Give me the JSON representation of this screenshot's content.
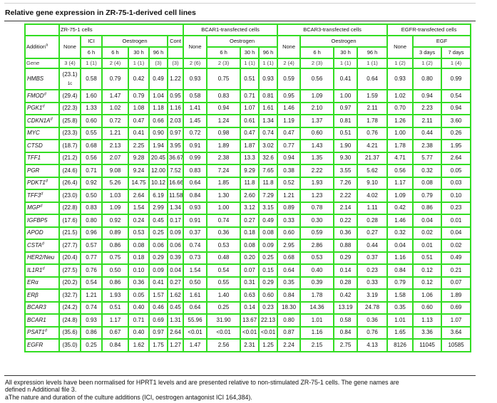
{
  "title": "Relative gene expression in ZR-75-1-derived cell lines",
  "groups": {
    "zr": "ZR-75-1 cells",
    "bcar1": "BCAR1-transfected cells",
    "bcar3": "BCAR3-transfected cells",
    "egfr": "EGFR-transfected cells"
  },
  "header": {
    "addition": "Addition",
    "addition_sup": "a",
    "none": "None",
    "ici": "ICI",
    "oestrogen": "Oestrogen",
    "egf": "EGF",
    "cont": "Cont",
    "t6h": "6 h",
    "t30h": "30 h",
    "t96h": "96 h",
    "t3d": "3 days",
    "t7d": "7 days",
    "gene": "Gene",
    "n": [
      "3 (4)",
      "1 (1)",
      "2 (4)",
      "1 (1)",
      "(3)",
      "(3)",
      "2 (6)",
      "2 (3)",
      "1 (1)",
      "1 (1)",
      "2 (4)",
      "2 (3)",
      "1 (1)",
      "1 (1)",
      "1 (2)",
      "1 (2)",
      "1 (4)"
    ]
  },
  "rows": [
    {
      "gene": "HMBS",
      "sup": "",
      "base": "(23.1)",
      "base_extra": "1c",
      "v": [
        "0.58",
        "0.79",
        "0.42",
        "0.49",
        "1.22",
        "0.93",
        "0.75",
        "0.51",
        "0.93",
        "0.59",
        "0.56",
        "0.41",
        "0.64",
        "0.93",
        "0.80",
        "0.99"
      ]
    },
    {
      "gene": "FMOD",
      "sup": "d",
      "base": "(29.4)",
      "base_extra": "",
      "v": [
        "1.60",
        "1.47",
        "0.79",
        "1.04",
        "0.95",
        "0.58",
        "0.83",
        "0.71",
        "0.81",
        "0.95",
        "1.09",
        "1.00",
        "1.59",
        "1.02",
        "0.94",
        "0.54"
      ]
    },
    {
      "gene": "PGK1",
      "sup": "d",
      "base": "(22.3)",
      "base_extra": "",
      "v": [
        "1.33",
        "1.02",
        "1.08",
        "1.18",
        "1.16",
        "1.41",
        "0.94",
        "1.07",
        "1.61",
        "1.46",
        "2.10",
        "0.97",
        "2.11",
        "0.70",
        "2.23",
        "0.94"
      ]
    },
    {
      "gene": "CDKN1A",
      "sup": "d",
      "base": "(25.8)",
      "base_extra": "",
      "v": [
        "0.60",
        "0.72",
        "0.47",
        "0.66",
        "2.03",
        "1.45",
        "1.24",
        "0.61",
        "1.34",
        "1.19",
        "1.37",
        "0.81",
        "1.78",
        "1.26",
        "2.11",
        "3.60"
      ]
    },
    {
      "gene": "MYC",
      "sup": "",
      "base": "(23.3)",
      "base_extra": "",
      "v": [
        "0.55",
        "1.21",
        "0.41",
        "0.90",
        "0.97",
        "0.72",
        "0.98",
        "0.47",
        "0.74",
        "0.47",
        "0.60",
        "0.51",
        "0.76",
        "1.00",
        "0.44",
        "0.26"
      ]
    },
    {
      "gene": "CTSD",
      "sup": "",
      "base": "(18.7)",
      "base_extra": "",
      "v": [
        "0.68",
        "2.13",
        "2.25",
        "1.94",
        "3.95",
        "0.91",
        "1.89",
        "1.87",
        "3.02",
        "0.77",
        "1.43",
        "1.90",
        "4.21",
        "1.78",
        "2.38",
        "1.95"
      ]
    },
    {
      "gene": "TFF1",
      "sup": "",
      "base": "(21.2)",
      "base_extra": "",
      "v": [
        "0.56",
        "2.07",
        "9.28",
        "20.45",
        "36.67",
        "0.99",
        "2.38",
        "13.3",
        "32.6",
        "0.94",
        "1.35",
        "9.30",
        "21.37",
        "4.71",
        "5.77",
        "2.64"
      ]
    },
    {
      "gene": "PGR",
      "sup": "",
      "base": "(24.6)",
      "base_extra": "",
      "v": [
        "0.71",
        "9.08",
        "9.24",
        "12.00",
        "7.52",
        "0.83",
        "7.24",
        "9.29",
        "7.65",
        "0.38",
        "2.22",
        "3.55",
        "5.62",
        "0.56",
        "0.32",
        "0.05"
      ]
    },
    {
      "gene": "PDKT1",
      "sup": "d",
      "base": "(26.4)",
      "base_extra": "",
      "v": [
        "0.92",
        "5.26",
        "14.75",
        "10.12",
        "16.66",
        "0.64",
        "1.85",
        "11.8",
        "11.8",
        "0.52",
        "1.93",
        "7.26",
        "9.10",
        "1.17",
        "0.08",
        "0.03"
      ]
    },
    {
      "gene": "TFF3",
      "sup": "d",
      "base": "(23.0)",
      "base_extra": "",
      "v": [
        "0.50",
        "1.03",
        "2.64",
        "6.19",
        "11.58",
        "0.84",
        "1.30",
        "2.60",
        "7.29",
        "1.21",
        "1.23",
        "2.22",
        "4.02",
        "1.09",
        "0.79",
        "0.10"
      ]
    },
    {
      "gene": "MGP",
      "sup": "d",
      "base": "(22.8)",
      "base_extra": "",
      "v": [
        "0.83",
        "1.09",
        "1.54",
        "2.99",
        "1.34",
        "0.93",
        "1.00",
        "3.12",
        "3.15",
        "0.89",
        "0.78",
        "2.14",
        "1.11",
        "0.42",
        "0.86",
        "0.23"
      ]
    },
    {
      "gene": "IGFBP5",
      "sup": "",
      "base": "(17.6)",
      "base_extra": "",
      "v": [
        "0.80",
        "0.92",
        "0.24",
        "0.45",
        "0.17",
        "0.91",
        "0.74",
        "0.27",
        "0.49",
        "0.33",
        "0.30",
        "0.22",
        "0.28",
        "1.46",
        "0.04",
        "0.01"
      ]
    },
    {
      "gene": "APOD",
      "sup": "",
      "base": "(21.5)",
      "base_extra": "",
      "v": [
        "0.96",
        "0.89",
        "0.53",
        "0.25",
        "0.09",
        "0.37",
        "0.36",
        "0.18",
        "0.08",
        "0.60",
        "0.59",
        "0.36",
        "0.27",
        "0.32",
        "0.02",
        "0.04"
      ]
    },
    {
      "gene": "CSTA",
      "sup": "d",
      "base": "(27.7)",
      "base_extra": "",
      "v": [
        "0.57",
        "0.86",
        "0.08",
        "0.06",
        "0.06",
        "0.74",
        "0.53",
        "0.08",
        "0.09",
        "2.95",
        "2.86",
        "0.88",
        "0.44",
        "0.04",
        "0.01",
        "0.02"
      ]
    },
    {
      "gene": "HER2/Neu",
      "sup": "",
      "base": "(20.4)",
      "base_extra": "",
      "v": [
        "0.77",
        "0.75",
        "0.18",
        "0.29",
        "0.39",
        "0.73",
        "0.48",
        "0.20",
        "0.25",
        "0.68",
        "0.53",
        "0.29",
        "0.37",
        "1.16",
        "0.51",
        "0.49"
      ]
    },
    {
      "gene": "IL1R1",
      "sup": "d",
      "base": "(27.5)",
      "base_extra": "",
      "v": [
        "0.76",
        "0.50",
        "0.10",
        "0.09",
        "0.04",
        "1.54",
        "0.54",
        "0.07",
        "0.15",
        "0.64",
        "0.40",
        "0.14",
        "0.23",
        "0.84",
        "0.12",
        "0.21"
      ]
    },
    {
      "gene": "ERα",
      "sup": "",
      "base": "(20.2)",
      "base_extra": "",
      "v": [
        "0.54",
        "0.86",
        "0.36",
        "0.41",
        "0.27",
        "0.50",
        "0.55",
        "0.31",
        "0.29",
        "0.35",
        "0.39",
        "0.28",
        "0.33",
        "0.79",
        "0.12",
        "0.07"
      ]
    },
    {
      "gene": "ERβ",
      "sup": "",
      "base": "(32.7)",
      "base_extra": "",
      "v": [
        "1.21",
        "1.93",
        "0.05",
        "1.57",
        "1.62",
        "1.61",
        "1.40",
        "0.63",
        "0.60",
        "0.84",
        "1.78",
        "0.42",
        "3.19",
        "1.58",
        "1.06",
        "1.89"
      ]
    },
    {
      "gene": "BCAR3",
      "sup": "",
      "base": "(24.2)",
      "base_extra": "",
      "v": [
        "0.74",
        "0.51",
        "0.40",
        "0.46",
        "0.45",
        "0.64",
        "0.25",
        "0.14",
        "0.23",
        "18.30",
        "14.36",
        "13.19",
        "24.78",
        "0.35",
        "0.60",
        "0.69"
      ]
    },
    {
      "gene": "BCAR1",
      "sup": "",
      "base": "(24.8)",
      "base_extra": "",
      "v": [
        "0.93",
        "1.17",
        "0.71",
        "0.69",
        "1.31",
        "55.96",
        "31.90",
        "13.67",
        "22.13",
        "0.80",
        "1.01",
        "0.58",
        "0.36",
        "1.01",
        "1.13",
        "1.07"
      ]
    },
    {
      "gene": "PSAT1",
      "sup": "d",
      "base": "(35.6)",
      "base_extra": "",
      "v": [
        "0.86",
        "0.67",
        "0.40",
        "0.97",
        "2.64",
        "<0.01",
        "<0.01",
        "<0.01",
        "<0.01",
        "0.87",
        "1.16",
        "0.84",
        "0.76",
        "1.65",
        "3.36",
        "3.64"
      ]
    },
    {
      "gene": "EGFR",
      "sup": "",
      "base": "(35.0)",
      "base_extra": "",
      "v": [
        "0.25",
        "0.84",
        "1.62",
        "1.75",
        "1.27",
        "1.47",
        "2.56",
        "2.31",
        "1.25",
        "2.24",
        "2.15",
        "2.75",
        "4.13",
        "8126",
        "11045",
        "10585"
      ]
    }
  ],
  "footnotes": {
    "line1": "All expression levels have been normalised for HPRT1 levels and are presented relative to non-stimulated ZR-75-1 cells. The gene names are",
    "line2": "defined n Additional file 3.",
    "line3": "aThe nature and duration of the culture additions (ICI, oestrogen antagonist ICI 164,384)."
  }
}
